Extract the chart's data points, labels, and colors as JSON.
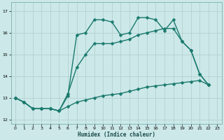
{
  "xlabel": "Humidex (Indice chaleur)",
  "bg_color": "#cce8e8",
  "grid_color": "#aecece",
  "line_color": "#1a7a6e",
  "markersize": 2.5,
  "linewidth": 1.0,
  "xlim": [
    -0.5,
    23.5
  ],
  "ylim": [
    11.8,
    17.4
  ],
  "yticks": [
    12,
    13,
    14,
    15,
    16,
    17
  ],
  "xticks": [
    0,
    1,
    2,
    3,
    4,
    5,
    6,
    7,
    8,
    9,
    10,
    11,
    12,
    13,
    14,
    15,
    16,
    17,
    18,
    19,
    20,
    21,
    22,
    23
  ],
  "series1": [
    [
      0,
      13.0
    ],
    [
      1,
      12.8
    ],
    [
      2,
      12.5
    ],
    [
      3,
      12.5
    ],
    [
      4,
      12.5
    ],
    [
      5,
      12.4
    ],
    [
      6,
      13.1
    ],
    [
      7,
      15.9
    ],
    [
      8,
      16.0
    ],
    [
      9,
      16.6
    ],
    [
      10,
      16.6
    ],
    [
      11,
      16.5
    ],
    [
      12,
      15.9
    ],
    [
      13,
      16.0
    ],
    [
      14,
      16.7
    ],
    [
      15,
      16.7
    ],
    [
      16,
      16.6
    ],
    [
      17,
      16.1
    ],
    [
      18,
      16.6
    ],
    [
      19,
      15.6
    ],
    [
      20,
      15.2
    ],
    [
      21,
      14.1
    ],
    [
      22,
      13.6
    ]
  ],
  "series2": [
    [
      0,
      13.0
    ],
    [
      1,
      12.8
    ],
    [
      2,
      12.5
    ],
    [
      3,
      12.5
    ],
    [
      4,
      12.5
    ],
    [
      5,
      12.4
    ],
    [
      6,
      13.2
    ],
    [
      7,
      14.4
    ],
    [
      8,
      15.0
    ],
    [
      9,
      15.5
    ],
    [
      10,
      15.5
    ],
    [
      11,
      15.5
    ],
    [
      12,
      15.6
    ],
    [
      13,
      15.7
    ],
    [
      14,
      15.9
    ],
    [
      15,
      16.0
    ],
    [
      16,
      16.1
    ],
    [
      17,
      16.2
    ],
    [
      18,
      16.2
    ],
    [
      19,
      15.6
    ],
    [
      20,
      15.2
    ],
    [
      21,
      14.1
    ],
    [
      22,
      13.6
    ]
  ],
  "series3": [
    [
      0,
      13.0
    ],
    [
      1,
      12.8
    ],
    [
      2,
      12.5
    ],
    [
      3,
      12.5
    ],
    [
      4,
      12.5
    ],
    [
      5,
      12.4
    ],
    [
      6,
      12.6
    ],
    [
      7,
      12.8
    ],
    [
      8,
      12.9
    ],
    [
      9,
      13.0
    ],
    [
      10,
      13.1
    ],
    [
      11,
      13.15
    ],
    [
      12,
      13.2
    ],
    [
      13,
      13.3
    ],
    [
      14,
      13.4
    ],
    [
      15,
      13.5
    ],
    [
      16,
      13.55
    ],
    [
      17,
      13.6
    ],
    [
      18,
      13.65
    ],
    [
      19,
      13.7
    ],
    [
      20,
      13.75
    ],
    [
      21,
      13.8
    ],
    [
      22,
      13.6
    ]
  ]
}
